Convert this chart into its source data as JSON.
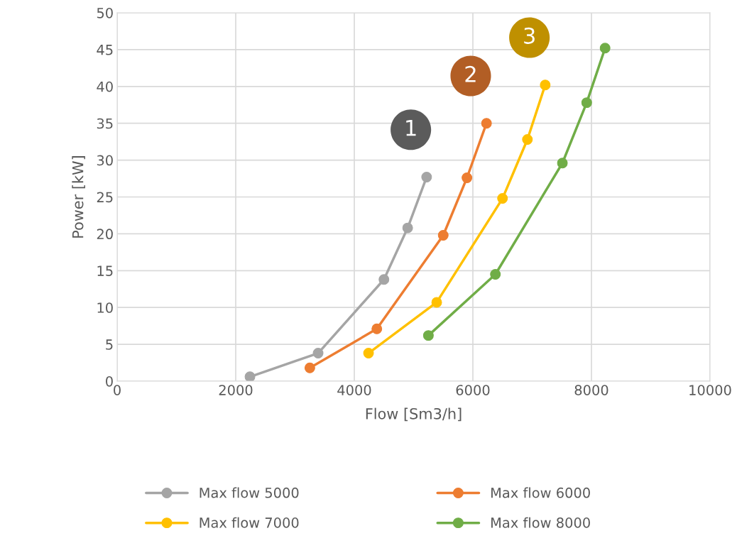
{
  "chart_data": {
    "type": "line",
    "xlabel": "Flow [Sm3/h]",
    "ylabel": "Power [kW]",
    "xlim": [
      0,
      10000
    ],
    "xticks": [
      0,
      2000,
      4000,
      6000,
      8000,
      10000
    ],
    "ylim": [
      0,
      50
    ],
    "yticks": [
      0,
      5,
      10,
      15,
      20,
      25,
      30,
      35,
      40,
      45,
      50
    ],
    "grid": true,
    "legend": "bottom",
    "marker": "circle",
    "line_style": "solid",
    "series": [
      {
        "name": "Max flow 5000",
        "color": "#a5a5a5",
        "x": [
          2240,
          3390,
          4500,
          4900,
          5220
        ],
        "values": [
          0.6,
          3.8,
          13.8,
          20.8,
          27.7
        ]
      },
      {
        "name": "Max flow 6000",
        "color": "#ed7d31",
        "x": [
          3250,
          4380,
          5500,
          5900,
          6230
        ],
        "values": [
          1.8,
          7.1,
          19.8,
          27.6,
          35.0
        ]
      },
      {
        "name": "Max flow 7000",
        "color": "#ffc000",
        "x": [
          4240,
          5390,
          6500,
          6920,
          7220
        ],
        "values": [
          3.8,
          10.7,
          24.8,
          32.8,
          40.2
        ]
      },
      {
        "name": "Max flow 8000",
        "color": "#70ad47",
        "x": [
          5250,
          6380,
          7510,
          7920,
          8230
        ],
        "values": [
          6.2,
          14.5,
          29.6,
          37.8,
          45.2
        ]
      }
    ],
    "annotations": [
      "1",
      "2",
      "3"
    ]
  }
}
